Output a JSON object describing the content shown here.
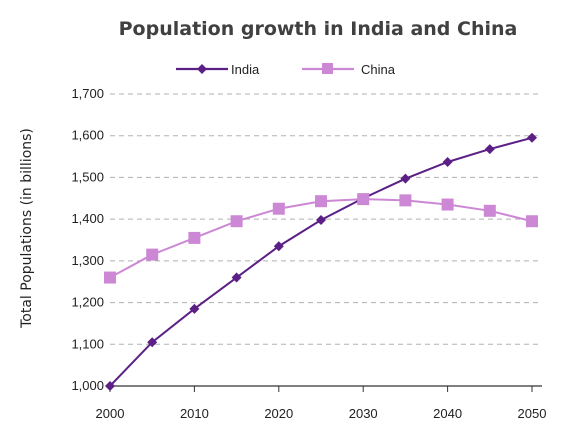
{
  "chart_data": {
    "type": "line",
    "title": "Population growth in India and China",
    "ylabel": "Total Populations (in billions)",
    "xlabel": "",
    "x": [
      2000,
      2005,
      2010,
      2015,
      2020,
      2025,
      2030,
      2035,
      2040,
      2045,
      2050
    ],
    "x_tick_labels": [
      "2000",
      "2010",
      "2020",
      "2030",
      "2040",
      "2050"
    ],
    "x_ticks": [
      2000,
      2010,
      2020,
      2030,
      2040,
      2050
    ],
    "y_tick_labels": [
      "1,000",
      "1,100",
      "1,200",
      "1,300",
      "1,400",
      "1,500",
      "1,600",
      "1,700"
    ],
    "y_ticks": [
      1000,
      1100,
      1200,
      1300,
      1400,
      1500,
      1600,
      1700
    ],
    "xlim": [
      2000,
      2050
    ],
    "ylim": [
      1000,
      1700
    ],
    "grid": "horizontal dashed",
    "legend_position": "top-center",
    "series": [
      {
        "name": "India",
        "color": "#5b1f86",
        "marker": "diamond",
        "values": [
          1000,
          1105,
          1185,
          1260,
          1335,
          1398,
          1450,
          1497,
          1537,
          1568,
          1595
        ]
      },
      {
        "name": "China",
        "color": "#cc88d4",
        "marker": "square",
        "values": [
          1260,
          1315,
          1355,
          1395,
          1425,
          1443,
          1448,
          1445,
          1435,
          1420,
          1395
        ]
      }
    ]
  }
}
